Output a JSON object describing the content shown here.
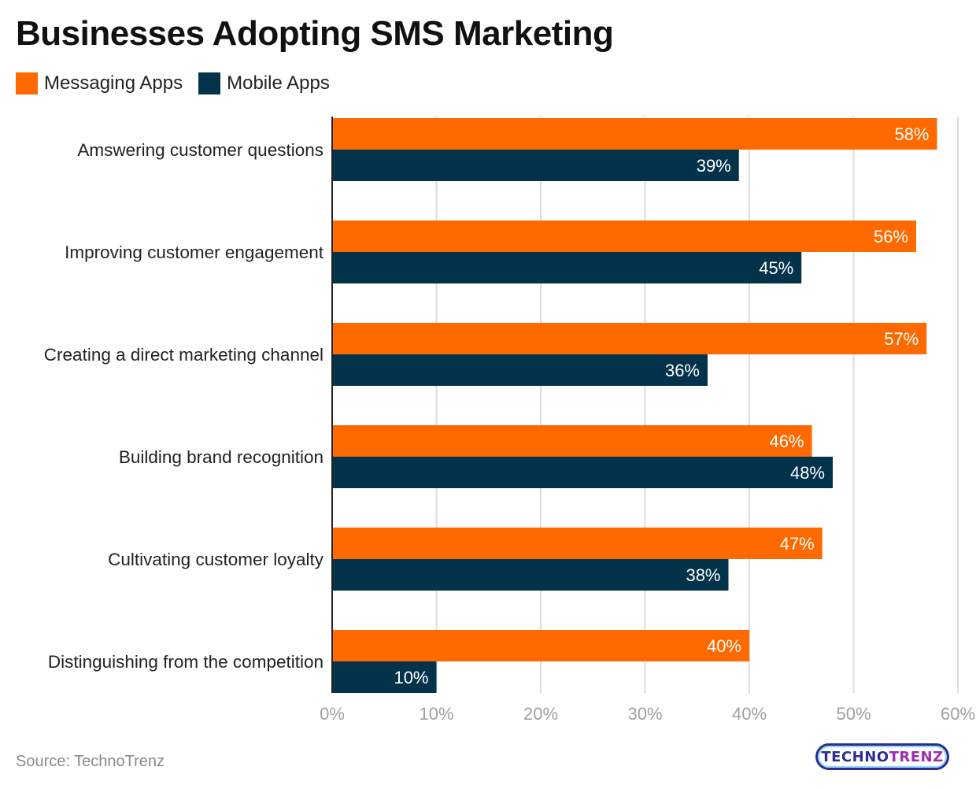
{
  "page": {
    "title": "Businesses Adopting SMS Marketing",
    "source": "Source: TechnoTrenz",
    "logo_text_a": "TECHNO",
    "logo_text_b": "TRENZ"
  },
  "colors": {
    "messaging": "#ff6a00",
    "mobile": "#02334b",
    "grid": "#dddddd",
    "axis": "#222222",
    "tick": "#a0a0a0",
    "label": "#222222",
    "value_label": "#ffffff"
  },
  "chart_data": {
    "type": "bar",
    "orientation": "horizontal",
    "title": "Businesses Adopting SMS Marketing",
    "categories": [
      "Amswering customer questions",
      "Improving customer engagement",
      "Creating a direct marketing channel",
      "Building brand recognition",
      "Cultivating customer loyalty",
      "Distinguishing from the competition"
    ],
    "series": [
      {
        "name": "Messaging Apps",
        "values": [
          58,
          56,
          57,
          46,
          47,
          40
        ]
      },
      {
        "name": "Mobile Apps",
        "values": [
          39,
          45,
          36,
          48,
          38,
          10
        ]
      }
    ],
    "value_suffix": "%",
    "xlim": [
      0,
      60
    ],
    "xticks": [
      0,
      10,
      20,
      30,
      40,
      50,
      60
    ],
    "xtick_labels": [
      "0%",
      "10%",
      "20%",
      "30%",
      "40%",
      "50%",
      "60%"
    ],
    "grid": true,
    "legend": "top-left",
    "xlabel": "",
    "ylabel": ""
  }
}
